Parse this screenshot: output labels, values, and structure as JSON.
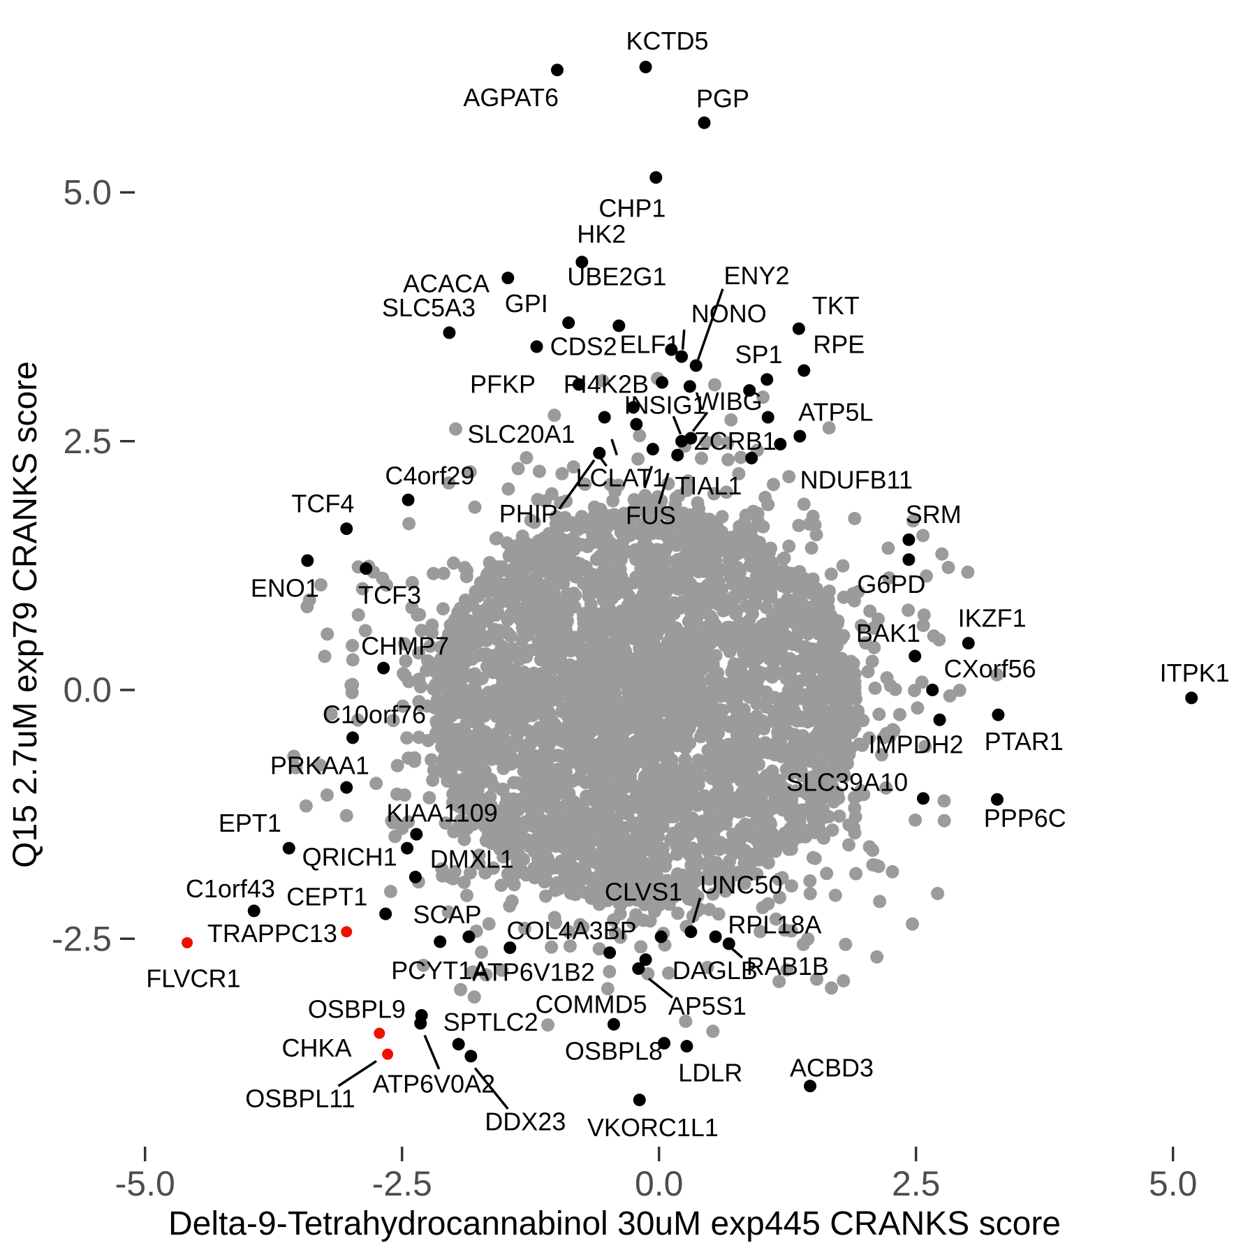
{
  "chart_data": {
    "type": "scatter",
    "title": "",
    "xlabel": "Delta-9-Tetrahydrocannabinol 30uM exp445 CRANKS score",
    "ylabel": "Q15 2.7uM exp79 CRANKS score",
    "xlim": [
      -5.6,
      5.6
    ],
    "ylim": [
      -4.9,
      6.8
    ],
    "grid": false,
    "legend": "none",
    "x_ticks": [
      {
        "value": -5.0,
        "label": "-5.0"
      },
      {
        "value": -2.5,
        "label": "-2.5"
      },
      {
        "value": 0.0,
        "label": "0.0"
      },
      {
        "value": 2.5,
        "label": "2.5"
      },
      {
        "value": 5.0,
        "label": "5.0"
      }
    ],
    "y_ticks": [
      {
        "value": 5.0,
        "label": "5.0"
      },
      {
        "value": 2.5,
        "label": "2.5"
      },
      {
        "value": 0.0,
        "label": "0.0"
      },
      {
        "value": -2.5,
        "label": "-2.5"
      }
    ],
    "colors": {
      "cloud_gray": "#9b9b9b",
      "point_black": "#000000",
      "point_red": "#ee1100",
      "tick_text": "#4d4d4d",
      "tick_mark": "#333333"
    },
    "labeled_points": [
      {
        "gene": "KCTD5",
        "x": -0.13,
        "y": 6.26,
        "label_x": 0.08,
        "label_y": 6.52,
        "anchor": "middle",
        "color": "black"
      },
      {
        "gene": "AGPAT6",
        "x": -0.99,
        "y": 6.23,
        "label_x": -1.44,
        "label_y": 5.95,
        "anchor": "middle",
        "color": "black"
      },
      {
        "gene": "PGP",
        "x": 0.44,
        "y": 5.7,
        "label_x": 0.62,
        "label_y": 5.94,
        "anchor": "middle",
        "color": "black"
      },
      {
        "gene": "CHP1",
        "x": -0.03,
        "y": 5.15,
        "label_x": -0.26,
        "label_y": 4.84,
        "anchor": "middle",
        "color": "black"
      },
      {
        "gene": "HK2",
        "x": -0.75,
        "y": 4.3,
        "label_x": -0.56,
        "label_y": 4.58,
        "anchor": "middle",
        "color": "black"
      },
      {
        "gene": "ACACA",
        "x": -1.47,
        "y": 4.14,
        "label_x": -2.07,
        "label_y": 4.08,
        "anchor": "middle",
        "color": "black"
      },
      {
        "gene": "UBE2G1",
        "x": -0.39,
        "y": 3.66,
        "label_x": -0.41,
        "label_y": 4.15,
        "anchor": "middle",
        "color": "black"
      },
      {
        "gene": "SLC5A3",
        "x": -2.04,
        "y": 3.59,
        "label_x": -2.24,
        "label_y": 3.84,
        "anchor": "middle",
        "color": "black"
      },
      {
        "gene": "GPI",
        "x": -0.88,
        "y": 3.69,
        "label_x": -1.29,
        "label_y": 3.88,
        "anchor": "middle",
        "color": "black"
      },
      {
        "gene": "CDS2",
        "x": -1.19,
        "y": 3.45,
        "label_x": -1.06,
        "label_y": 3.45,
        "anchor": "start",
        "color": "black"
      },
      {
        "gene": "ELF1",
        "x": 0.12,
        "y": 3.42,
        "label_x": -0.09,
        "label_y": 3.47,
        "anchor": "middle",
        "color": "black"
      },
      {
        "gene": "NONO",
        "x": 0.22,
        "y": 3.35,
        "label_x": 0.68,
        "label_y": 3.78,
        "anchor": "middle",
        "color": "black",
        "leaders": [
          [
            0.245,
            3.62,
            0.23,
            3.42
          ]
        ]
      },
      {
        "gene": "ENY2",
        "x": 0.36,
        "y": 3.26,
        "label_x": 0.95,
        "label_y": 4.16,
        "anchor": "middle",
        "color": "black",
        "leaders": [
          [
            0.62,
            4.03,
            0.38,
            3.32
          ]
        ]
      },
      {
        "gene": "TKT",
        "x": 1.36,
        "y": 3.63,
        "label_x": 1.72,
        "label_y": 3.86,
        "anchor": "middle",
        "color": "black"
      },
      {
        "gene": "SP1",
        "x": 1.05,
        "y": 3.12,
        "label_x": 0.97,
        "label_y": 3.37,
        "anchor": "middle",
        "color": "black"
      },
      {
        "gene": "RPE",
        "x": 1.41,
        "y": 3.21,
        "label_x": 1.75,
        "label_y": 3.47,
        "anchor": "middle",
        "color": "black"
      },
      {
        "gene": "PFKP",
        "x": -0.78,
        "y": 3.07,
        "label_x": -1.2,
        "label_y": 3.07,
        "anchor": "end",
        "color": "black"
      },
      {
        "gene": "PI4K2B",
        "x": 0.03,
        "y": 3.09,
        "label_x": -0.1,
        "label_y": 3.07,
        "anchor": "end",
        "color": "black"
      },
      {
        "gene": "INSIG1",
        "x": 0.22,
        "y": 2.5,
        "label_x": 0.06,
        "label_y": 2.86,
        "anchor": "middle",
        "color": "black",
        "leaders": [
          [
            0.14,
            2.75,
            0.21,
            2.57
          ]
        ]
      },
      {
        "gene": "WIBG",
        "x": 0.31,
        "y": 2.53,
        "label_x": 0.68,
        "label_y": 2.9,
        "anchor": "middle",
        "color": "black",
        "leaders": [
          [
            0.47,
            2.79,
            0.33,
            2.6
          ]
        ]
      },
      {
        "gene": "ATP5L",
        "x": 1.37,
        "y": 2.55,
        "label_x": 1.72,
        "label_y": 2.79,
        "anchor": "middle",
        "color": "black"
      },
      {
        "gene": "ZCRB1",
        "x": 0.18,
        "y": 2.36,
        "label_x": 0.34,
        "label_y": 2.5,
        "anchor": "start",
        "color": "black"
      },
      {
        "gene": "SLC20A1",
        "x": -0.58,
        "y": 2.38,
        "label_x": -1.34,
        "label_y": 2.57,
        "anchor": "middle",
        "color": "black",
        "leaders": [
          [
            -0.46,
            2.52,
            -0.41,
            2.36
          ]
        ]
      },
      {
        "gene": "C4orf29",
        "x": -2.44,
        "y": 1.91,
        "label_x": -2.23,
        "label_y": 2.15,
        "anchor": "middle",
        "color": "black"
      },
      {
        "gene": "TIAL1",
        "x": 0.9,
        "y": 2.33,
        "label_x": 0.48,
        "label_y": 2.05,
        "anchor": "middle",
        "color": "black"
      },
      {
        "gene": "NDUFB11",
        "x": 1.18,
        "y": 2.47,
        "label_x": 1.92,
        "label_y": 2.11,
        "anchor": "middle",
        "color": "black"
      },
      {
        "gene": "LCLAT1",
        "has_dot": false,
        "label_x": -0.37,
        "label_y": 2.13,
        "anchor": "middle",
        "color": "black",
        "leaders": [
          [
            -0.51,
            2.25,
            -0.575,
            2.34
          ],
          [
            -0.07,
            2.25,
            -0.14,
            2.03
          ]
        ]
      },
      {
        "gene": "FUS",
        "has_dot": false,
        "label_x": -0.08,
        "label_y": 1.75,
        "anchor": "middle",
        "color": "black",
        "leaders": [
          [
            0.0,
            1.87,
            0.09,
            2.18
          ]
        ]
      },
      {
        "gene": "PHIP",
        "has_dot": false,
        "label_x": -1.27,
        "label_y": 1.77,
        "anchor": "middle",
        "color": "black",
        "leaders": [
          [
            -0.97,
            1.82,
            -0.63,
            2.31
          ]
        ]
      },
      {
        "gene": "TCF4",
        "x": -3.04,
        "y": 1.62,
        "label_x": -3.27,
        "label_y": 1.87,
        "anchor": "middle",
        "color": "black"
      },
      {
        "gene": "ENO1",
        "x": -3.42,
        "y": 1.3,
        "label_x": -3.64,
        "label_y": 1.02,
        "anchor": "middle",
        "color": "black"
      },
      {
        "gene": "TCF3",
        "x": -2.85,
        "y": 1.22,
        "label_x": -2.62,
        "label_y": 0.95,
        "anchor": "middle",
        "color": "black"
      },
      {
        "gene": "SRM",
        "x": 2.43,
        "y": 1.51,
        "label_x": 2.67,
        "label_y": 1.76,
        "anchor": "middle",
        "color": "black"
      },
      {
        "gene": "G6PD",
        "x": 2.43,
        "y": 1.31,
        "label_x": 2.26,
        "label_y": 1.06,
        "anchor": "middle",
        "color": "black"
      },
      {
        "gene": "CHMP7",
        "x": -2.68,
        "y": 0.22,
        "label_x": -2.47,
        "label_y": 0.44,
        "anchor": "middle",
        "color": "black"
      },
      {
        "gene": "BAK1",
        "x": 2.49,
        "y": 0.34,
        "label_x": 2.23,
        "label_y": 0.57,
        "anchor": "middle",
        "color": "black"
      },
      {
        "gene": "IKZF1",
        "x": 3.01,
        "y": 0.47,
        "label_x": 3.24,
        "label_y": 0.72,
        "anchor": "middle",
        "color": "black"
      },
      {
        "gene": "CXorf56",
        "x": 2.66,
        "y": 0.0,
        "label_x": 3.22,
        "label_y": 0.21,
        "anchor": "middle",
        "color": "black"
      },
      {
        "gene": "ITPK1",
        "x": 5.18,
        "y": -0.08,
        "label_x": 5.21,
        "label_y": 0.17,
        "anchor": "middle",
        "color": "black"
      },
      {
        "gene": "C10orf76",
        "x": -2.98,
        "y": -0.48,
        "label_x": -2.77,
        "label_y": -0.25,
        "anchor": "middle",
        "color": "black"
      },
      {
        "gene": "IMPDH2",
        "x": 2.73,
        "y": -0.3,
        "label_x": 2.5,
        "label_y": -0.55,
        "anchor": "middle",
        "color": "black"
      },
      {
        "gene": "PTAR1",
        "x": 3.3,
        "y": -0.25,
        "label_x": 3.55,
        "label_y": -0.52,
        "anchor": "middle",
        "color": "black"
      },
      {
        "gene": "PRKAA1",
        "x": -3.04,
        "y": -0.98,
        "label_x": -3.3,
        "label_y": -0.76,
        "anchor": "middle",
        "color": "black"
      },
      {
        "gene": "SLC39A10",
        "x": 2.57,
        "y": -1.09,
        "label_x": 1.83,
        "label_y": -0.93,
        "anchor": "middle",
        "color": "black"
      },
      {
        "gene": "PPP6C",
        "x": 3.29,
        "y": -1.1,
        "label_x": 3.56,
        "label_y": -1.29,
        "anchor": "middle",
        "color": "black"
      },
      {
        "gene": "EPT1",
        "x": -3.6,
        "y": -1.59,
        "label_x": -3.98,
        "label_y": -1.34,
        "anchor": "middle",
        "color": "black"
      },
      {
        "gene": "KIAA1109",
        "x": -2.36,
        "y": -1.45,
        "label_x": -2.11,
        "label_y": -1.24,
        "anchor": "middle",
        "color": "black"
      },
      {
        "gene": "QRICH1",
        "x": -2.45,
        "y": -1.59,
        "label_x": -3.01,
        "label_y": -1.68,
        "anchor": "middle",
        "color": "black"
      },
      {
        "gene": "DMXL1",
        "x": -2.37,
        "y": -1.88,
        "label_x": -1.82,
        "label_y": -1.7,
        "anchor": "middle",
        "color": "black"
      },
      {
        "gene": "C1orf43",
        "x": -3.94,
        "y": -2.22,
        "label_x": -4.17,
        "label_y": -2.0,
        "anchor": "middle",
        "color": "black"
      },
      {
        "gene": "CEPT1",
        "x": -2.66,
        "y": -2.25,
        "label_x": -3.23,
        "label_y": -2.08,
        "anchor": "middle",
        "color": "black"
      },
      {
        "gene": "SCAP",
        "x": -2.13,
        "y": -2.53,
        "label_x": -2.06,
        "label_y": -2.26,
        "anchor": "middle",
        "color": "black"
      },
      {
        "gene": "CLVS1",
        "x": 0.02,
        "y": -2.48,
        "label_x": -0.15,
        "label_y": -2.03,
        "anchor": "middle",
        "color": "black"
      },
      {
        "gene": "UNC50",
        "x": 0.31,
        "y": -2.43,
        "label_x": 0.8,
        "label_y": -1.96,
        "anchor": "middle",
        "color": "black",
        "leaders": [
          [
            0.4,
            -2.09,
            0.33,
            -2.34
          ]
        ]
      },
      {
        "gene": "TRAPPC13",
        "x": -3.04,
        "y": -2.43,
        "label_x": -3.13,
        "label_y": -2.45,
        "anchor": "end",
        "color": "red"
      },
      {
        "gene": "COL4A3BP",
        "x": -0.48,
        "y": -2.64,
        "label_x": -0.85,
        "label_y": -2.42,
        "anchor": "middle",
        "color": "black"
      },
      {
        "gene": "RPL18A",
        "x": 0.55,
        "y": -2.48,
        "label_x": 0.67,
        "label_y": -2.36,
        "anchor": "start",
        "color": "black"
      },
      {
        "gene": "FLVCR1",
        "x": -4.59,
        "y": -2.54,
        "label_x": -4.53,
        "label_y": -2.9,
        "anchor": "middle",
        "color": "red"
      },
      {
        "gene": "RAB1B",
        "x": 0.68,
        "y": -2.55,
        "label_x": 0.85,
        "label_y": -2.78,
        "anchor": "start",
        "color": "black",
        "leaders": [
          [
            0.81,
            -2.69,
            0.71,
            -2.6
          ]
        ]
      },
      {
        "gene": "PCYT1A",
        "x": -1.85,
        "y": -2.48,
        "label_x": -2.13,
        "label_y": -2.82,
        "anchor": "middle",
        "color": "black"
      },
      {
        "gene": "ATP6V1B2",
        "x": -1.45,
        "y": -2.59,
        "label_x": -1.22,
        "label_y": -2.84,
        "anchor": "middle",
        "color": "black"
      },
      {
        "gene": "DAGLB",
        "x": -0.13,
        "y": -2.71,
        "label_x": 0.13,
        "label_y": -2.82,
        "anchor": "start",
        "color": "black"
      },
      {
        "gene": "COMMD5",
        "x": -0.44,
        "y": -3.36,
        "label_x": -0.66,
        "label_y": -3.16,
        "anchor": "middle",
        "color": "black"
      },
      {
        "gene": "AP5S1",
        "x": -0.2,
        "y": -2.8,
        "label_x": 0.47,
        "label_y": -3.18,
        "anchor": "middle",
        "color": "black",
        "leaders": [
          [
            -0.1,
            -2.9,
            0.13,
            -3.09
          ]
        ]
      },
      {
        "gene": "OSBPL9",
        "x": -2.72,
        "y": -3.45,
        "label_x": -2.94,
        "label_y": -3.21,
        "anchor": "middle",
        "color": "red"
      },
      {
        "gene": "SPTLC2",
        "x": -2.31,
        "y": -3.27,
        "label_x": -2.1,
        "label_y": -3.34,
        "anchor": "start",
        "color": "black"
      },
      {
        "gene": "CHKA",
        "x": -2.64,
        "y": -3.66,
        "label_x": -3.33,
        "label_y": -3.6,
        "anchor": "middle",
        "color": "red"
      },
      {
        "gene": "OSBPL8",
        "x": 0.05,
        "y": -3.55,
        "label_x": -0.44,
        "label_y": -3.63,
        "anchor": "middle",
        "color": "black"
      },
      {
        "gene": "LDLR",
        "x": 0.27,
        "y": -3.58,
        "label_x": 0.5,
        "label_y": -3.85,
        "anchor": "middle",
        "color": "black"
      },
      {
        "gene": "VKORC1L1",
        "x": -0.19,
        "y": -4.12,
        "label_x": -0.06,
        "label_y": -4.4,
        "anchor": "middle",
        "color": "black"
      },
      {
        "gene": "ACBD3",
        "x": 1.47,
        "y": -3.98,
        "label_x": 1.68,
        "label_y": -3.8,
        "anchor": "middle",
        "color": "black"
      },
      {
        "gene": "DDX23",
        "x": -1.83,
        "y": -3.68,
        "label_x": -1.3,
        "label_y": -4.34,
        "anchor": "middle",
        "color": "black",
        "leaders": [
          [
            -1.79,
            -3.8,
            -1.47,
            -4.21
          ]
        ]
      },
      {
        "gene": "ATP6V0A2",
        "x": -2.32,
        "y": -3.35,
        "label_x": -2.19,
        "label_y": -3.96,
        "anchor": "middle",
        "color": "black",
        "leaders": [
          [
            -2.28,
            -3.47,
            -2.14,
            -3.81
          ]
        ]
      },
      {
        "gene": "OSBPL11",
        "has_dot": false,
        "label_x": -3.49,
        "label_y": -4.11,
        "anchor": "middle",
        "color": "black",
        "leaders": [
          [
            -3.12,
            -3.98,
            -2.75,
            -3.73
          ]
        ]
      }
    ],
    "extra_black_points": [
      [
        0.3,
        3.05
      ],
      [
        0.88,
        3.01
      ],
      [
        1.06,
        2.74
      ],
      [
        -0.25,
        2.84
      ],
      [
        -0.22,
        2.67
      ],
      [
        -0.06,
        2.42
      ],
      [
        -0.53,
        2.74
      ],
      [
        -1.95,
        -3.56
      ]
    ],
    "background_cloud": {
      "description": "unlabeled genes, dense gray mass",
      "color": "#9b9b9b",
      "center_x": -0.14,
      "center_y": -0.18,
      "core_count": 3200,
      "core_radius": 2.08,
      "radial_exponent": 0.6,
      "y_squash": 0.96,
      "halo_count": 700,
      "halo_scale": 0.45,
      "max_radius": 3.45,
      "seed": 42
    }
  }
}
